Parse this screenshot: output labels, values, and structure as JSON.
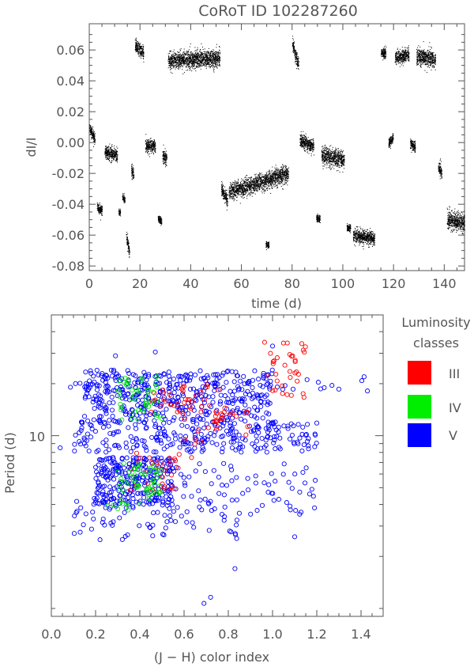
{
  "chart_data": [
    {
      "type": "scatter",
      "title": "CoRoT ID 102287260",
      "xlabel": "time (d)",
      "ylabel": "dI/I",
      "xlim": [
        0,
        148
      ],
      "ylim": [
        -0.083,
        0.077
      ],
      "xticks": [
        0,
        20,
        40,
        60,
        80,
        100,
        120,
        140
      ],
      "yticks": [
        -0.08,
        -0.06,
        -0.04,
        -0.02,
        0.0,
        0.02,
        0.04,
        0.06
      ],
      "ytick_labels": [
        "-0.08",
        "-0.06",
        "-0.04",
        "-0.02",
        "0.00",
        "0.02",
        "0.04",
        "0.06"
      ],
      "grid": false,
      "series_color": "#000000",
      "segments": [
        {
          "x": [
            0.0,
            2.2
          ],
          "y": [
            0.01,
            0.002
          ],
          "spread": 0.003
        },
        {
          "x": [
            3.0,
            5.0
          ],
          "y": [
            -0.041,
            -0.044
          ],
          "spread": 0.003
        },
        {
          "x": [
            6.0,
            11.0
          ],
          "y": [
            -0.006,
            -0.008
          ],
          "spread": 0.004
        },
        {
          "x": [
            11.5,
            12.2
          ],
          "y": [
            -0.045,
            -0.045
          ],
          "spread": 0.002
        },
        {
          "x": [
            13.0,
            14.0
          ],
          "y": [
            -0.035,
            -0.037
          ],
          "spread": 0.002
        },
        {
          "x": [
            14.5,
            15.8
          ],
          "y": [
            -0.06,
            -0.071
          ],
          "spread": 0.003
        },
        {
          "x": [
            16.5,
            17.5
          ],
          "y": [
            -0.018,
            -0.021
          ],
          "spread": 0.003
        },
        {
          "x": [
            18.0,
            21.5
          ],
          "y": [
            0.063,
            0.058
          ],
          "spread": 0.004
        },
        {
          "x": [
            22.0,
            26.0
          ],
          "y": [
            -0.002,
            -0.002
          ],
          "spread": 0.004
        },
        {
          "x": [
            27.0,
            28.5
          ],
          "y": [
            -0.049,
            -0.051
          ],
          "spread": 0.002
        },
        {
          "x": [
            28.8,
            30.5
          ],
          "y": [
            -0.008,
            -0.01
          ],
          "spread": 0.004
        },
        {
          "x": [
            31.0,
            51.5
          ],
          "y": [
            0.053,
            0.055
          ],
          "spread": 0.005
        },
        {
          "x": [
            52.0,
            54.5
          ],
          "y": [
            -0.03,
            -0.038
          ],
          "spread": 0.004
        },
        {
          "x": [
            55.0,
            78.5
          ],
          "y": [
            -0.032,
            -0.02
          ],
          "spread": 0.005
        },
        {
          "x": [
            69.5,
            70.8
          ],
          "y": [
            -0.066,
            -0.066
          ],
          "spread": 0.002
        },
        {
          "x": [
            80.0,
            82.5
          ],
          "y": [
            0.064,
            0.05
          ],
          "spread": 0.004
        },
        {
          "x": [
            83.0,
            88.5
          ],
          "y": [
            0.002,
            -0.003
          ],
          "spread": 0.004
        },
        {
          "x": [
            89.5,
            91.0
          ],
          "y": [
            -0.049,
            -0.049
          ],
          "spread": 0.002
        },
        {
          "x": [
            91.5,
            100.5
          ],
          "y": [
            -0.008,
            -0.011
          ],
          "spread": 0.005
        },
        {
          "x": [
            101.5,
            103.0
          ],
          "y": [
            -0.055,
            -0.055
          ],
          "spread": 0.002
        },
        {
          "x": [
            104.0,
            112.5
          ],
          "y": [
            -0.06,
            -0.062
          ],
          "spread": 0.004
        },
        {
          "x": [
            115.0,
            117.0
          ],
          "y": [
            0.058,
            0.058
          ],
          "spread": 0.003
        },
        {
          "x": [
            118.0,
            119.8
          ],
          "y": [
            0.0,
            0.003
          ],
          "spread": 0.003
        },
        {
          "x": [
            120.5,
            126.0
          ],
          "y": [
            0.055,
            0.057
          ],
          "spread": 0.004
        },
        {
          "x": [
            126.5,
            128.5
          ],
          "y": [
            0.0,
            -0.003
          ],
          "spread": 0.003
        },
        {
          "x": [
            129.0,
            136.5
          ],
          "y": [
            0.056,
            0.054
          ],
          "spread": 0.005
        },
        {
          "x": [
            137.5,
            139.0
          ],
          "y": [
            -0.015,
            -0.02
          ],
          "spread": 0.004
        },
        {
          "x": [
            141.0,
            148.0
          ],
          "y": [
            -0.05,
            -0.052
          ],
          "spread": 0.005
        }
      ]
    },
    {
      "type": "scatter",
      "xlabel": "(J − H) color index",
      "ylabel": "Period (d)",
      "xlim": [
        0.0,
        1.5
      ],
      "ylim": [
        0.9,
        50
      ],
      "yscale": "log",
      "xticks": [
        0.0,
        0.2,
        0.4,
        0.6,
        0.8,
        1.0,
        1.2,
        1.4
      ],
      "xtick_labels": [
        "0.0",
        "0.2",
        "0.4",
        "0.6",
        "0.8",
        "1.0",
        "1.2",
        "1.4"
      ],
      "yticks": [
        10
      ],
      "ytick_labels": [
        "10"
      ],
      "grid": false,
      "legend": {
        "title_line1": "Luminosity",
        "title_line2": "classes",
        "placement": "right",
        "entries": [
          {
            "label": "III",
            "color": "#ff0000"
          },
          {
            "label": "IV",
            "color": "#00ee00"
          },
          {
            "label": "V",
            "color": "#0000ff"
          }
        ]
      },
      "series": [
        {
          "name": "III",
          "color": "#ff0000",
          "clusters": [
            {
              "x": [
                0.35,
                0.65
              ],
              "y": [
                4.8,
                8.0
              ],
              "n": 30
            },
            {
              "x": [
                0.45,
                0.8
              ],
              "y": [
                12,
                20
              ],
              "n": 45
            },
            {
              "x": [
                0.95,
                1.15
              ],
              "y": [
                16,
                35
              ],
              "n": 35
            },
            {
              "x": [
                0.6,
                0.9
              ],
              "y": [
                8,
                14
              ],
              "n": 20
            }
          ]
        },
        {
          "name": "IV",
          "color": "#00ee00",
          "clusters": [
            {
              "x": [
                0.3,
                0.5
              ],
              "y": [
                4.5,
                7.0
              ],
              "n": 45
            },
            {
              "x": [
                0.3,
                0.5
              ],
              "y": [
                12,
                22
              ],
              "n": 45
            },
            {
              "x": [
                0.25,
                0.45
              ],
              "y": [
                3.5,
                5.0
              ],
              "n": 12
            }
          ]
        },
        {
          "name": "V",
          "color": "#0000ff",
          "clusters": [
            {
              "x": [
                0.2,
                0.55
              ],
              "y": [
                4.0,
                7.5
              ],
              "n": 260
            },
            {
              "x": [
                0.15,
                1.0
              ],
              "y": [
                12,
                24
              ],
              "n": 420
            },
            {
              "x": [
                0.1,
                1.2
              ],
              "y": [
                8,
                12
              ],
              "n": 260
            },
            {
              "x": [
                0.1,
                0.85
              ],
              "y": [
                2.5,
                4.5
              ],
              "n": 80
            },
            {
              "x": [
                0.5,
                1.2
              ],
              "y": [
                3.5,
                7.0
              ],
              "n": 80
            },
            {
              "x": [
                0.05,
                1.45
              ],
              "y": [
                18,
                23
              ],
              "n": 50
            }
          ],
          "outliers": [
            [
              0.69,
              1.07
            ],
            [
              0.72,
              1.16
            ],
            [
              0.22,
              2.5
            ],
            [
              0.47,
              30.5
            ],
            [
              0.29,
              29.0
            ],
            [
              1.0,
              33.0
            ],
            [
              0.04,
              8.5
            ],
            [
              1.1,
              2.6
            ],
            [
              0.83,
              1.7
            ]
          ]
        }
      ]
    }
  ]
}
